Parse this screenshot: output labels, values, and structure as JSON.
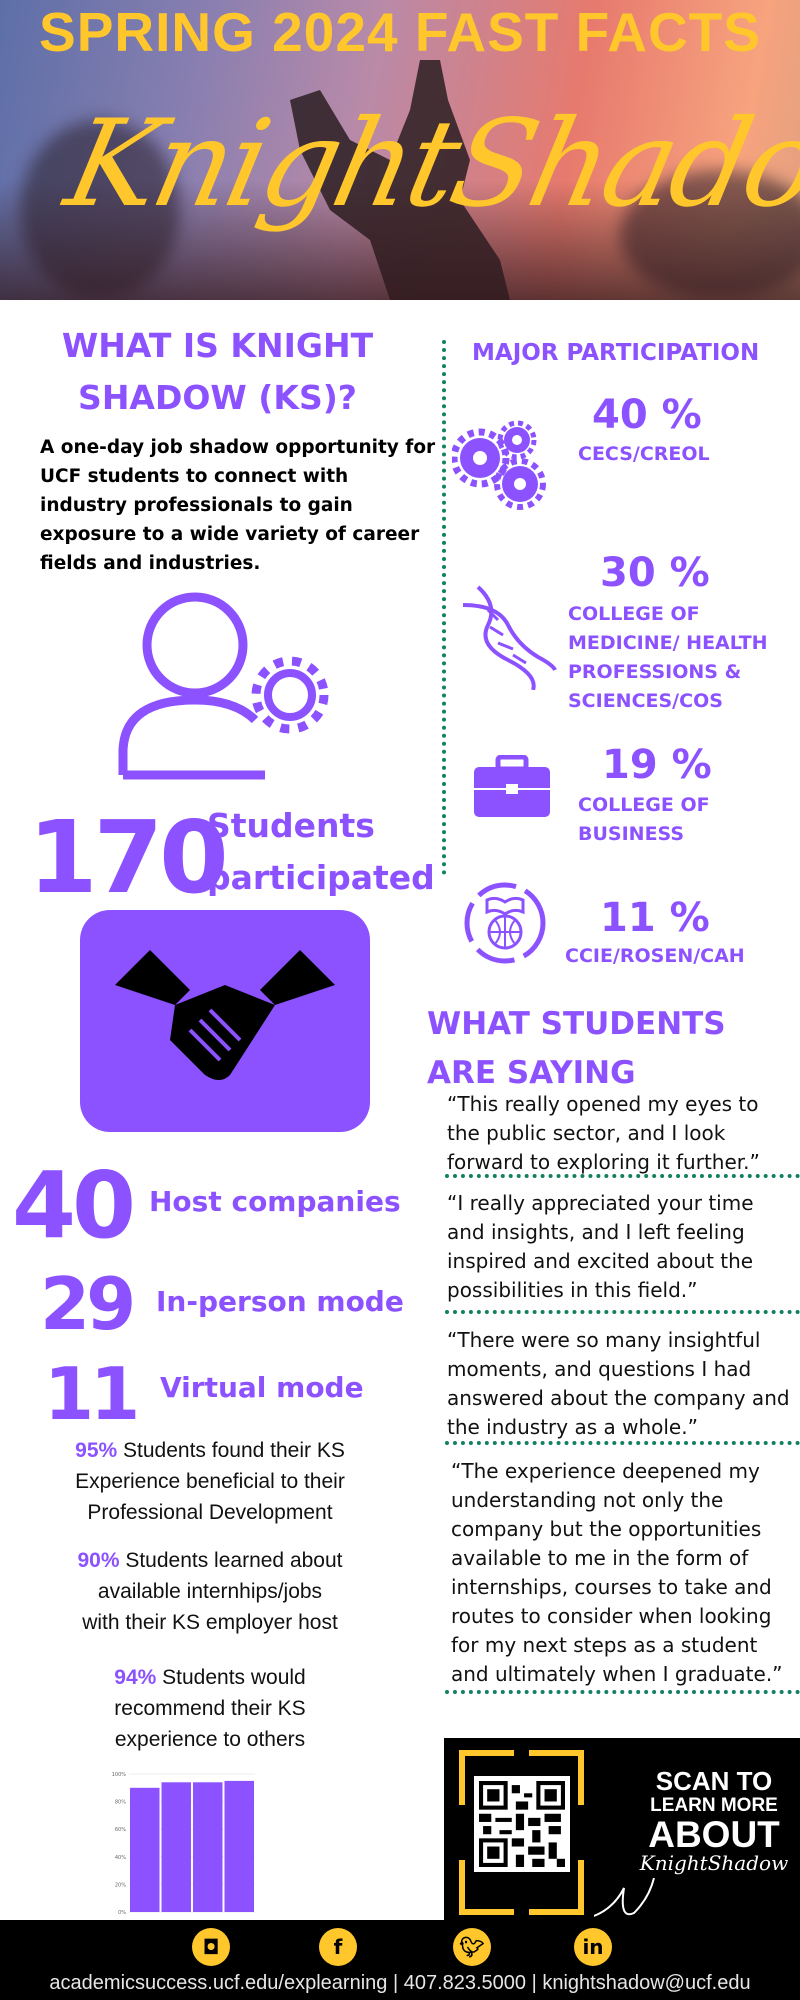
{
  "header": {
    "title": "SPRING 2024 FAST FACTS",
    "script_logo": "KnightShadow"
  },
  "about": {
    "heading": "WHAT IS KNIGHT\nSHADOW (KS)?",
    "description": "A one-day job shadow opportunity for UCF students to connect with industry professionals to gain exposure to a wide variety of career fields and industries."
  },
  "stats": {
    "students": {
      "value": "170",
      "label": "Students\nparticipated"
    },
    "hosts": {
      "value": "40",
      "label": "Host companies"
    },
    "in_person": {
      "value": "29",
      "label": "In-person mode"
    },
    "virtual": {
      "value": "11",
      "label": "Virtual mode"
    }
  },
  "outcomes": [
    {
      "pct": "95%",
      "text": " Students found their KS\nExperience beneficial to their\nProfessional Development"
    },
    {
      "pct": "90%",
      "text": " Students learned about\navailable internhips/jobs\nwith their  KS employer host"
    },
    {
      "pct": "94%",
      "text": " Students would\nrecommend their KS\nexperience to others"
    }
  ],
  "major_participation": {
    "heading": "MAJOR PARTICIPATION",
    "items": [
      {
        "pct": "40 %",
        "label": "CECS/CREOL",
        "icon": "gears-icon"
      },
      {
        "pct": "30 %",
        "label": "COLLEGE OF\nMEDICINE/ HEALTH\nPROFESSIONS &\nSCIENCES/COS",
        "icon": "dna-icon"
      },
      {
        "pct": "19 %",
        "label": "COLLEGE OF\nBUSINESS",
        "icon": "briefcase-icon"
      },
      {
        "pct": "11 %",
        "label": "CCIE/ROSEN/CAH",
        "icon": "globe-book-icon"
      }
    ]
  },
  "testimonials": {
    "heading": "WHAT STUDENTS\nARE SAYING",
    "quotes": [
      "“This really opened my eyes to\nthe public sector, and I look\nforward to exploring it further.”",
      "“I really appreciated your time\nand insights, and I left feeling\ninspired and excited about the\npossibilities in this field.”",
      "“There were so many insightful\nmoments, and questions I had\nanswered about the company and\nthe industry as a whole.”",
      "“The experience deepened my\nunderstanding not only the\ncompany but the opportunities\navailable to me in the form of\ninternships, courses to take and\nroutes to consider when looking\nfor my next steps as a student\nand ultimately when I graduate.”"
    ]
  },
  "qr": {
    "line1": "SCAN TO",
    "line2": "LEARN MORE",
    "line3": "ABOUT",
    "line4": "KnightShadow"
  },
  "footer": {
    "social": [
      "instagram-icon",
      "facebook-icon",
      "twitter-icon",
      "linkedin-icon"
    ],
    "contact": "academicsuccess.ucf.edu/explearning | 407.823.5000 | knightshadow@ucf.edu"
  },
  "colors": {
    "purple": "#8c52ff",
    "gold": "#ffc72c",
    "green_dots": "#128062"
  },
  "chart_data": {
    "type": "bar",
    "categories": [
      "",
      "",
      "",
      ""
    ],
    "values": [
      90,
      94,
      94,
      95
    ],
    "yticks": [
      "0%",
      "20%",
      "40%",
      "60%",
      "80%",
      "100%"
    ],
    "ylim": [
      0,
      100
    ],
    "grid": true
  }
}
